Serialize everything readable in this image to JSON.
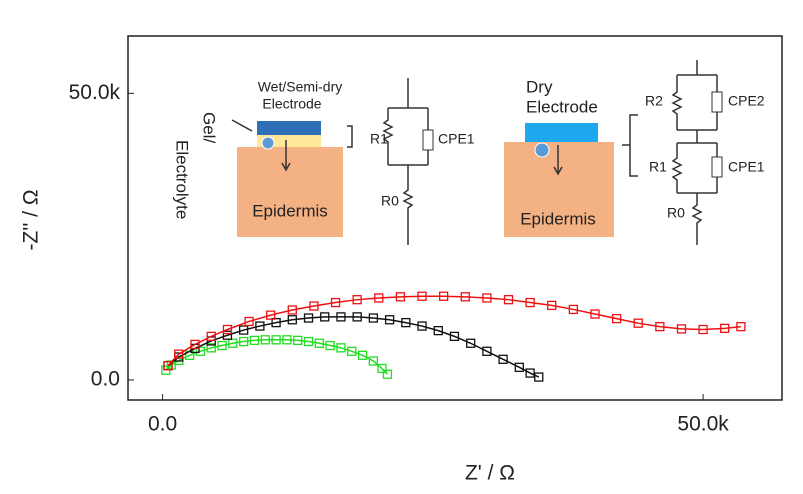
{
  "chart_data": {
    "type": "scatter",
    "x_label": "Z' / Ω",
    "y_label": "-Z'' / Ω",
    "xlim": [
      -3200,
      57300
    ],
    "ylim": [
      -3500,
      60000
    ],
    "xticks": [
      {
        "value": 0,
        "label": "0.0"
      },
      {
        "value": 50000,
        "label": "50.0k"
      }
    ],
    "yticks": [
      {
        "value": 0,
        "label": "0.0"
      },
      {
        "value": 50000,
        "label": "50.0k"
      }
    ],
    "annotations": [
      "Wet/Semi-dry",
      "Electrode",
      "Gel/",
      "Electrolyte",
      "Epidermis",
      "R1",
      "CPE1",
      "R0",
      "Dry",
      "Electrode",
      "Epidermis",
      "R2",
      "CPE2",
      "R1",
      "CPE1",
      "R0"
    ],
    "series": [
      {
        "color": "#22dd22",
        "x": [
          300,
          800,
          1500,
          2500,
          3500,
          4500,
          5500,
          6500,
          7500,
          8500,
          9500,
          10500,
          11500,
          12500,
          13500,
          14500,
          15500,
          16500,
          17500,
          18500,
          19500,
          20300,
          20800
        ],
        "values": [
          1700,
          2600,
          3400,
          4300,
          5000,
          5600,
          6000,
          6400,
          6700,
          6900,
          7000,
          7000,
          7000,
          6900,
          6700,
          6400,
          6000,
          5600,
          5000,
          4300,
          3300,
          2000,
          1000
        ]
      },
      {
        "color": "#111111",
        "x": [
          500,
          1500,
          3000,
          4500,
          6000,
          7500,
          9000,
          10500,
          12000,
          13500,
          15000,
          16500,
          18000,
          19500,
          21000,
          22500,
          24000,
          25500,
          27000,
          28500,
          30000,
          31500,
          33000,
          34000,
          34800
        ],
        "values": [
          2500,
          4000,
          5500,
          6800,
          7800,
          8700,
          9400,
          10000,
          10500,
          10800,
          11000,
          11000,
          11000,
          10800,
          10500,
          10000,
          9400,
          8600,
          7600,
          6400,
          5000,
          3600,
          2200,
          1200,
          500
        ]
      },
      {
        "color": "#ee1111",
        "x": [
          500,
          1500,
          3000,
          4500,
          6000,
          8000,
          10000,
          12000,
          14000,
          16000,
          18000,
          20000,
          22000,
          24000,
          26000,
          28000,
          30000,
          32000,
          34000,
          36000,
          38000,
          40000,
          42000,
          44000,
          46000,
          48000,
          50000,
          52000,
          53500
        ],
        "values": [
          2500,
          4500,
          6200,
          7600,
          8800,
          10200,
          11300,
          12200,
          12900,
          13500,
          14000,
          14300,
          14500,
          14600,
          14600,
          14500,
          14300,
          14000,
          13500,
          13000,
          12300,
          11500,
          10700,
          9900,
          9300,
          8900,
          8800,
          9000,
          9300
        ]
      }
    ]
  }
}
